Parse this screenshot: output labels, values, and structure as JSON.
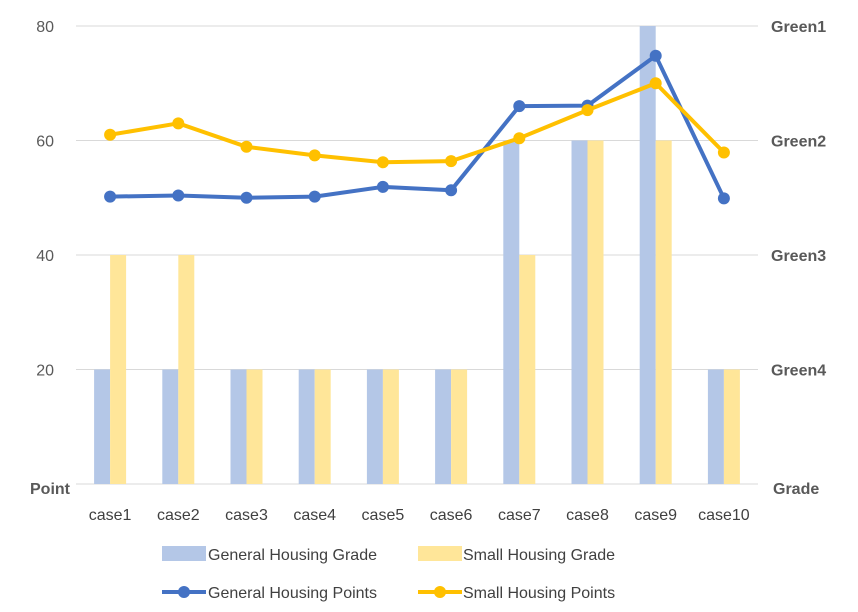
{
  "chart_data": {
    "type": "bar",
    "categories": [
      "case1",
      "case2",
      "case3",
      "case4",
      "case5",
      "case6",
      "case7",
      "case8",
      "case9",
      "case10"
    ],
    "ylabel": "Point",
    "y2label": "Grade",
    "ylim": [
      0,
      80
    ],
    "yticks": [
      "20",
      "40",
      "60",
      "80"
    ],
    "y2ticks": [
      "Green4",
      "Green3",
      "Green2",
      "Green1"
    ],
    "grid": true,
    "legend_position": "bottom",
    "series": [
      {
        "name": "General Housing Grade",
        "kind": "bar",
        "axis": "right",
        "color": "#B4C7E7",
        "values": [
          20,
          20,
          20,
          20,
          20,
          20,
          60,
          60,
          80,
          20
        ]
      },
      {
        "name": "Small Housing Grade",
        "kind": "bar",
        "axis": "right",
        "color": "#FFE699",
        "values": [
          40,
          40,
          20,
          20,
          20,
          20,
          40,
          60,
          60,
          20
        ]
      },
      {
        "name": "General Housing Points",
        "kind": "line",
        "axis": "left",
        "color": "#4472C4",
        "values": [
          50.2,
          50.4,
          50.0,
          50.2,
          51.9,
          51.3,
          66.0,
          66.1,
          74.8,
          49.9
        ]
      },
      {
        "name": "Small Housing Points",
        "kind": "line",
        "axis": "left",
        "color": "#FFC000",
        "values": [
          61.0,
          63.0,
          58.9,
          57.4,
          56.2,
          56.4,
          60.4,
          65.3,
          70.0,
          57.9
        ]
      }
    ],
    "legend": {
      "row1": [
        "General Housing Grade",
        "Small Housing Grade"
      ],
      "row2": [
        "General Housing Points",
        "Small Housing Points"
      ]
    }
  }
}
